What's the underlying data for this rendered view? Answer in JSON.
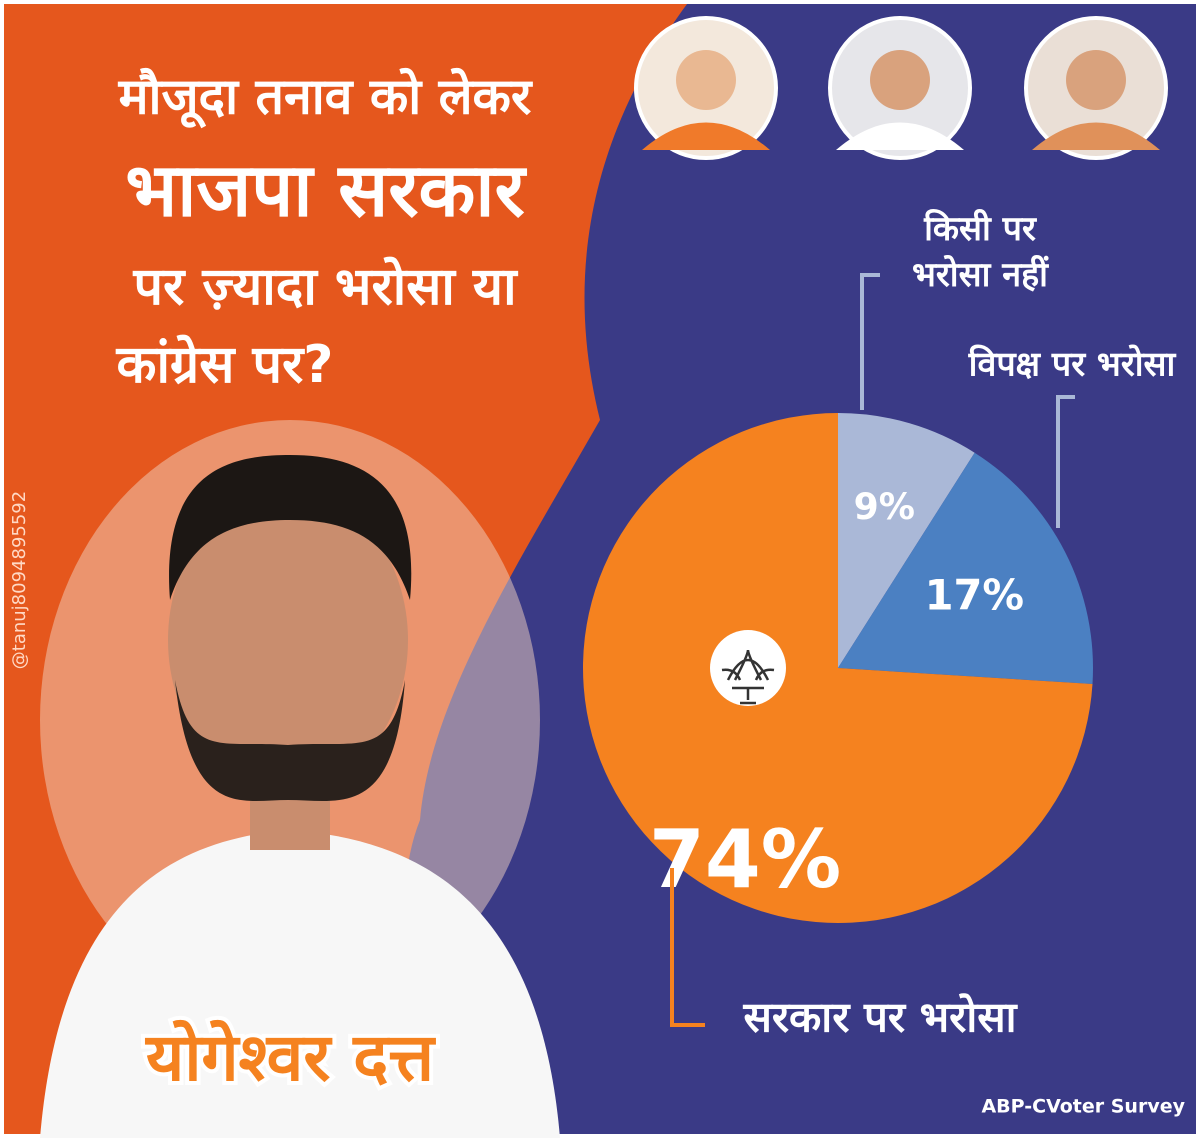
{
  "chart_data": {
    "type": "pie",
    "title": [
      "मौजूदा तनाव को लेकर",
      "भाजपा सरकार",
      "पर ज़्यादा भरोसा या",
      "कांग्रेस पर?"
    ],
    "categories": [
      "किसी पर भरोसा नहीं",
      "विपक्ष पर भरोसा",
      "सरकार पर भरोसा"
    ],
    "values": [
      9,
      17,
      74
    ],
    "value_labels": [
      "9%",
      "17%",
      "74%"
    ],
    "colors": [
      "#aab8d7",
      "#4b80c2",
      "#f5821f"
    ]
  },
  "person_name": "योगेश्वर दत्त",
  "watermark": "@tanuj8094895592",
  "source": "ABP-CVoter Survey"
}
